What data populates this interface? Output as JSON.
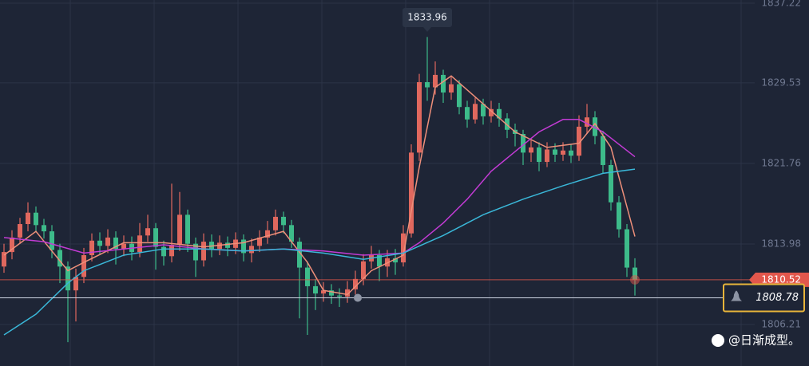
{
  "chart_data": {
    "type": "candlestick",
    "open": [
      1811.8,
      1813.2,
      1814.6,
      1815.9,
      1817.0,
      1815.8,
      1815.2,
      1813.4,
      1811.8,
      1809.5,
      1810.8,
      1812.9,
      1814.3,
      1813.8,
      1814.6,
      1813.5,
      1814.0,
      1813.2,
      1814.8,
      1815.5,
      1813.7,
      1812.8,
      1813.9,
      1816.8,
      1814.0,
      1812.4,
      1814.2,
      1813.5,
      1814.1,
      1813.6,
      1814.4,
      1813.1,
      1813.8,
      1814.6,
      1815.3,
      1816.6,
      1815.8,
      1814.2,
      1811.7,
      1809.9,
      1809.2,
      1809.5,
      1809.0,
      1808.9,
      1809.6,
      1810.6,
      1812.3,
      1812.9,
      1811.8,
      1812.6,
      1812.2,
      1815.0,
      1822.8,
      1829.6,
      1829.1,
      1830.3,
      1828.6,
      1829.4,
      1827.2,
      1826.0,
      1827.5,
      1826.3,
      1827.0,
      1826.1,
      1825.0,
      1824.6,
      1822.8,
      1823.3,
      1821.9,
      1823.1,
      1822.6,
      1823.0,
      1822.5,
      1825.3,
      1826.2,
      1824.4,
      1821.6,
      1818.0,
      1815.4,
      1811.7
    ],
    "high": [
      1814.0,
      1815.3,
      1816.5,
      1818.0,
      1817.6,
      1816.4,
      1815.8,
      1814.0,
      1812.3,
      1811.6,
      1813.6,
      1815.0,
      1815.1,
      1815.4,
      1815.2,
      1814.8,
      1814.7,
      1816.0,
      1816.8,
      1816.0,
      1814.3,
      1819.8,
      1819.0,
      1817.3,
      1814.6,
      1815.0,
      1814.9,
      1814.8,
      1814.7,
      1815.1,
      1814.9,
      1814.5,
      1815.3,
      1816.2,
      1817.3,
      1817.1,
      1816.3,
      1814.6,
      1812.3,
      1810.6,
      1810.3,
      1810.1,
      1809.7,
      1810.4,
      1811.4,
      1813.0,
      1813.8,
      1813.4,
      1813.4,
      1813.5,
      1815.8,
      1823.6,
      1830.4,
      1833.96,
      1831.6,
      1830.8,
      1830.1,
      1829.8,
      1827.8,
      1828.1,
      1828.0,
      1827.8,
      1827.6,
      1826.6,
      1825.6,
      1825.0,
      1824.1,
      1823.8,
      1823.8,
      1823.7,
      1823.8,
      1823.6,
      1826.4,
      1827.5,
      1826.8,
      1824.9,
      1822.1,
      1818.6,
      1815.9,
      1812.6
    ],
    "low": [
      1811.2,
      1812.5,
      1814.0,
      1815.2,
      1815.1,
      1814.5,
      1812.6,
      1810.2,
      1804.5,
      1806.5,
      1810.2,
      1812.3,
      1813.0,
      1813.1,
      1812.0,
      1812.8,
      1812.4,
      1812.7,
      1814.2,
      1811.5,
      1811.9,
      1812.2,
      1813.3,
      1813.2,
      1810.8,
      1811.8,
      1812.7,
      1812.9,
      1812.8,
      1813.0,
      1812.3,
      1812.2,
      1813.2,
      1814.0,
      1814.8,
      1815.0,
      1813.6,
      1806.8,
      1805.2,
      1807.6,
      1808.4,
      1808.2,
      1807.9,
      1808.3,
      1809.1,
      1810.0,
      1811.6,
      1810.4,
      1810.8,
      1811.0,
      1811.8,
      1814.6,
      1822.0,
      1827.8,
      1828.4,
      1827.6,
      1827.9,
      1826.5,
      1825.2,
      1825.6,
      1825.5,
      1825.7,
      1825.3,
      1824.2,
      1823.4,
      1821.6,
      1821.9,
      1821.0,
      1821.4,
      1821.9,
      1822.0,
      1821.8,
      1822.0,
      1824.6,
      1823.6,
      1820.8,
      1817.2,
      1814.6,
      1810.8,
      1809.0
    ],
    "close": [
      1813.2,
      1814.6,
      1815.9,
      1817.0,
      1815.8,
      1815.2,
      1813.4,
      1811.8,
      1809.5,
      1810.8,
      1812.9,
      1814.3,
      1813.8,
      1814.6,
      1813.5,
      1814.0,
      1813.2,
      1814.8,
      1815.5,
      1813.7,
      1812.8,
      1813.9,
      1816.8,
      1814.0,
      1812.4,
      1814.2,
      1813.5,
      1814.1,
      1813.6,
      1814.4,
      1813.1,
      1813.8,
      1814.6,
      1815.3,
      1816.6,
      1815.8,
      1814.2,
      1811.7,
      1809.9,
      1809.2,
      1809.5,
      1809.0,
      1808.9,
      1809.6,
      1810.6,
      1812.3,
      1812.9,
      1811.8,
      1812.6,
      1812.2,
      1815.0,
      1822.8,
      1829.6,
      1829.1,
      1830.3,
      1828.6,
      1829.4,
      1827.2,
      1826.0,
      1827.5,
      1826.3,
      1827.0,
      1826.1,
      1825.0,
      1824.6,
      1822.8,
      1823.3,
      1821.9,
      1823.1,
      1822.6,
      1823.0,
      1822.5,
      1825.3,
      1826.2,
      1824.4,
      1821.6,
      1818.0,
      1815.4,
      1811.7,
      1810.52
    ],
    "up_color": "#e0685e",
    "down_color": "#3dbb8a",
    "moving_averages": [
      {
        "color": "#ee8f7a",
        "x": [
          0,
          4,
          8,
          10,
          15,
          20,
          25,
          30,
          35,
          38,
          40,
          43,
          46,
          50,
          52,
          54,
          56,
          60,
          64,
          68,
          72,
          74,
          76,
          79
        ],
        "values": [
          1812.9,
          1815.2,
          1811.4,
          1812.2,
          1814.1,
          1814.1,
          1813.7,
          1814.1,
          1815.2,
          1812.2,
          1809.5,
          1809.1,
          1811.4,
          1812.9,
          1821.4,
          1829.1,
          1830.2,
          1827.5,
          1824.8,
          1823.3,
          1823.7,
          1825.6,
          1823.3,
          1814.7
        ]
      },
      {
        "color": "#c23bd4",
        "x": [
          0,
          5,
          10,
          15,
          20,
          25,
          30,
          35,
          40,
          45,
          50,
          52,
          55,
          58,
          61,
          64,
          67,
          70,
          72,
          75,
          79
        ],
        "values": [
          1814.6,
          1814.2,
          1813.1,
          1813.5,
          1813.9,
          1813.5,
          1813.3,
          1813.5,
          1813.3,
          1812.9,
          1813.1,
          1814.1,
          1816.0,
          1818.3,
          1821.0,
          1822.9,
          1824.8,
          1826.0,
          1826.0,
          1824.8,
          1822.4
        ]
      },
      {
        "color": "#3ab7d8",
        "x": [
          0,
          4,
          8,
          10,
          15,
          20,
          25,
          30,
          35,
          40,
          45,
          50,
          55,
          60,
          65,
          70,
          75,
          79
        ],
        "values": [
          1805.2,
          1807.2,
          1810.2,
          1811.4,
          1812.9,
          1813.5,
          1813.5,
          1813.3,
          1813.5,
          1813.1,
          1812.5,
          1813.1,
          1814.8,
          1816.8,
          1818.3,
          1819.6,
          1820.8,
          1821.2
        ]
      }
    ],
    "ylim": [
      1802.2,
      1837.53
    ],
    "yticks": [
      1837.22,
      1829.53,
      1821.76,
      1813.98,
      1806.21
    ],
    "grid": true,
    "last_price": 1810.52,
    "last_price_color": "#e2574c",
    "current_price": 1808.78,
    "watermark": "@日渐成型。"
  }
}
